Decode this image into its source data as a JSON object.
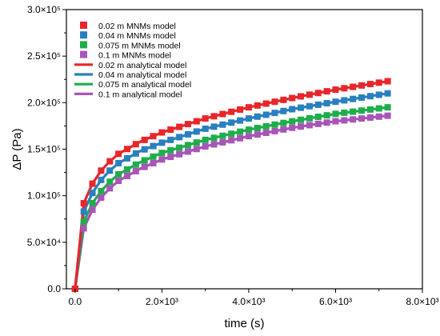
{
  "chart_data": {
    "type": "line",
    "xlabel": "time (s)",
    "ylabel": "ΔP (Pa)",
    "xlim": [
      -200,
      8000
    ],
    "ylim": [
      0,
      300000
    ],
    "x_ticks": [
      0,
      2000,
      4000,
      6000,
      8000
    ],
    "x_tick_labels": [
      "0.0",
      "2.0×10³",
      "4.0×10³",
      "6.0×10³",
      "8.0×10³"
    ],
    "y_ticks": [
      0,
      50000,
      100000,
      150000,
      200000,
      250000,
      300000
    ],
    "y_tick_labels": [
      "0.0",
      "5.0×10⁴",
      "1.0×10⁵",
      "1.5×10⁵",
      "2.0×10⁵",
      "2.5×10⁵",
      "3.0×10⁵"
    ],
    "legend_position": "top-left",
    "grid": false,
    "series": [
      {
        "name": "0.02 m MNMs model",
        "kind": "markers",
        "color": "#e8262a",
        "d": 0.02
      },
      {
        "name": "0.04 m MNMs model",
        "kind": "markers",
        "color": "#2a7fc0",
        "d": 0.04
      },
      {
        "name": "0.075 m MNMs model",
        "kind": "markers",
        "color": "#1fad4b",
        "d": 0.075
      },
      {
        "name": "0.1 m MNMs model",
        "kind": "markers",
        "color": "#a855b8",
        "d": 0.1
      },
      {
        "name": "0.02 m analytical model",
        "kind": "line",
        "color": "#e8262a",
        "d": 0.02
      },
      {
        "name": "0.04 m analytical model",
        "kind": "line",
        "color": "#2a7fc0",
        "d": 0.04
      },
      {
        "name": "0.075 m analytical model",
        "kind": "line",
        "color": "#1fad4b",
        "d": 0.075
      },
      {
        "name": "0.1 m analytical model",
        "kind": "line",
        "color": "#a855b8",
        "d": 0.1
      }
    ],
    "curves": {
      "0.02": {
        "x": [
          0,
          200,
          400,
          600,
          800,
          1000,
          1500,
          2000,
          3000,
          4000,
          5000,
          6000,
          7200
        ],
        "y": [
          0,
          92000,
          113000,
          127000,
          137000,
          145000,
          158000,
          168000,
          183000,
          195000,
          205000,
          214000,
          223000
        ]
      },
      "0.04": {
        "x": [
          0,
          200,
          400,
          600,
          800,
          1000,
          1500,
          2000,
          3000,
          4000,
          5000,
          6000,
          7200
        ],
        "y": [
          0,
          83000,
          103000,
          117000,
          127000,
          135000,
          148000,
          157000,
          172000,
          183000,
          193000,
          201000,
          210000
        ]
      },
      "0.075": {
        "x": [
          0,
          200,
          400,
          600,
          800,
          1000,
          1500,
          2000,
          3000,
          4000,
          5000,
          6000,
          7200
        ],
        "y": [
          0,
          72000,
          92000,
          105000,
          115000,
          123000,
          136000,
          146000,
          160000,
          171000,
          180000,
          188000,
          195000
        ]
      },
      "0.1": {
        "x": [
          0,
          200,
          400,
          600,
          800,
          1000,
          1500,
          2000,
          3000,
          4000,
          5000,
          6000,
          7200
        ],
        "y": [
          0,
          65000,
          85000,
          98000,
          108000,
          116000,
          129000,
          139000,
          153000,
          164000,
          173000,
          180000,
          186000
        ]
      }
    },
    "marker_x": [
      0,
      200,
      400,
      600,
      800,
      1000,
      1200,
      1400,
      1600,
      1800,
      2000,
      2200,
      2400,
      2600,
      2800,
      3000,
      3200,
      3400,
      3600,
      3800,
      4000,
      4200,
      4400,
      4600,
      4800,
      5000,
      5200,
      5400,
      5600,
      5800,
      6000,
      6200,
      6400,
      6600,
      6800,
      7000,
      7200
    ]
  }
}
